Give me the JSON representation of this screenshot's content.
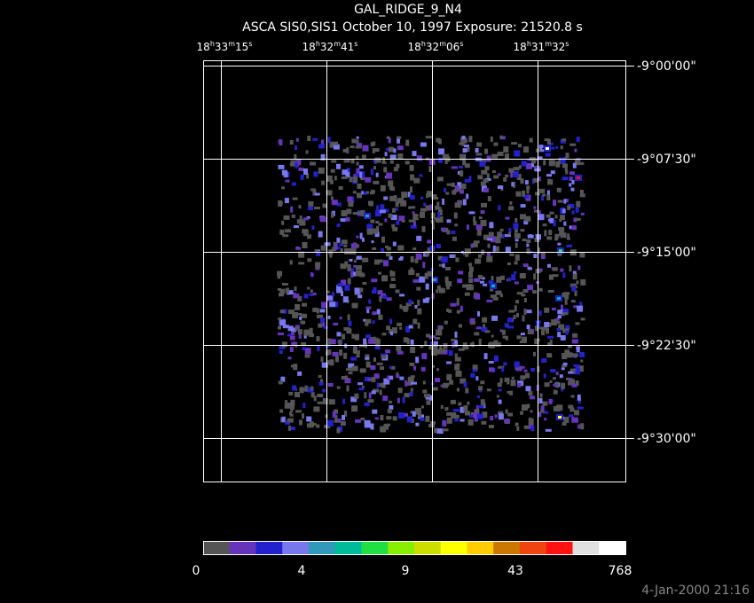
{
  "header": {
    "title": "GAL_RIDGE_9_N4",
    "subtitle": "ASCA SIS0,SIS1 October 10, 1997 Exposure: 21520.8 s"
  },
  "ra_labels": [
    [
      "18",
      "h",
      "33",
      "m",
      "15",
      "s"
    ],
    [
      "18",
      "h",
      "32",
      "m",
      "41",
      "s"
    ],
    [
      "18",
      "h",
      "32",
      "m",
      "06",
      "s"
    ],
    [
      "18",
      "h",
      "31",
      "m",
      "32",
      "s"
    ]
  ],
  "dec_labels": [
    "-9°00'00\"",
    "-9°07'30\"",
    "-9°15'00\"",
    "-9°22'30\"",
    "-9°30'00\""
  ],
  "colorbar": {
    "colors": [
      "#555555",
      "#6633bb",
      "#2222cc",
      "#7777ee",
      "#3399bb",
      "#00bb99",
      "#22dd44",
      "#88ee00",
      "#ccdd00",
      "#ffff00",
      "#ffcc00",
      "#cc7700",
      "#ee4411",
      "#ff1111",
      "#e0e0e0",
      "#ffffff"
    ],
    "labels": [
      "0",
      "4",
      "9",
      "43",
      "768"
    ]
  },
  "timestamp": "4-Jan-2000 21:16"
}
